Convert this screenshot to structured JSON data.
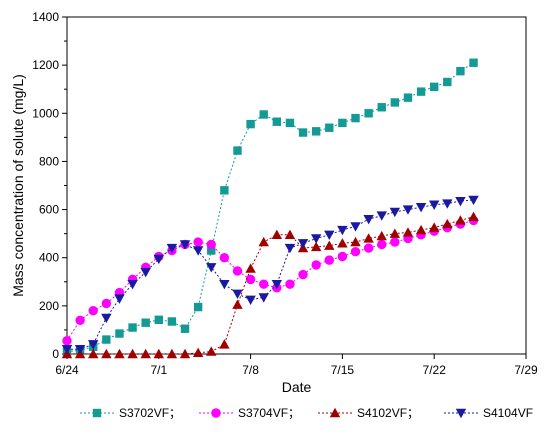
{
  "chart_data": {
    "type": "line",
    "xlabel": "Date",
    "ylabel": "Mass concentration of solute (mg/L)",
    "ylim": [
      0,
      1400
    ],
    "yticks": [
      0,
      200,
      400,
      600,
      800,
      1000,
      1200,
      1400
    ],
    "xlim": [
      "6/24",
      "7/29"
    ],
    "xticks": [
      "6/24",
      "7/1",
      "7/8",
      "7/15",
      "7/22",
      "7/29"
    ],
    "grid": false,
    "legend_position": "bottom",
    "series": [
      {
        "name": "S3702VF",
        "legend_label": "S3702VF；",
        "color": "#139A94",
        "marker": "square",
        "x": [
          "6/24",
          "6/25",
          "6/26",
          "6/27",
          "6/28",
          "6/29",
          "6/30",
          "7/1",
          "7/2",
          "7/3",
          "7/4",
          "7/5",
          "7/6",
          "7/7",
          "7/8",
          "7/9",
          "7/10",
          "7/11",
          "7/12",
          "7/13",
          "7/14",
          "7/15",
          "7/16",
          "7/17",
          "7/18",
          "7/19",
          "7/20",
          "7/21",
          "7/22",
          "7/23",
          "7/24",
          "7/25"
        ],
        "y": [
          10,
          15,
          30,
          60,
          85,
          110,
          130,
          142,
          135,
          105,
          195,
          430,
          680,
          845,
          955,
          995,
          965,
          960,
          920,
          925,
          940,
          960,
          980,
          1000,
          1025,
          1045,
          1065,
          1090,
          1110,
          1130,
          1175,
          1210
        ]
      },
      {
        "name": "S3704VF",
        "legend_label": "S3704VF；",
        "color": "#FF00FF",
        "marker": "circle",
        "x": [
          "6/24",
          "6/25",
          "6/26",
          "6/27",
          "6/28",
          "6/29",
          "6/30",
          "7/1",
          "7/2",
          "7/3",
          "7/4",
          "7/5",
          "7/6",
          "7/7",
          "7/8",
          "7/9",
          "7/10",
          "7/11",
          "7/12",
          "7/13",
          "7/14",
          "7/15",
          "7/16",
          "7/17",
          "7/18",
          "7/19",
          "7/20",
          "7/21",
          "7/22",
          "7/23",
          "7/24",
          "7/25"
        ],
        "y": [
          55,
          140,
          180,
          210,
          255,
          310,
          360,
          405,
          430,
          455,
          465,
          455,
          400,
          345,
          310,
          290,
          275,
          290,
          330,
          370,
          390,
          405,
          425,
          440,
          455,
          465,
          480,
          495,
          510,
          525,
          540,
          555
        ]
      },
      {
        "name": "S4102VF",
        "legend_label": "S4102VF；",
        "color": "#A00000",
        "marker": "triangle-up",
        "x": [
          "6/24",
          "6/25",
          "6/26",
          "6/27",
          "6/28",
          "6/29",
          "6/30",
          "7/1",
          "7/2",
          "7/3",
          "7/4",
          "7/5",
          "7/6",
          "7/7",
          "7/8",
          "7/9",
          "7/10",
          "7/11",
          "7/12",
          "7/13",
          "7/14",
          "7/15",
          "7/16",
          "7/17",
          "7/18",
          "7/19",
          "7/20",
          "7/21",
          "7/22",
          "7/23",
          "7/24",
          "7/25"
        ],
        "y": [
          0,
          0,
          0,
          0,
          0,
          0,
          0,
          0,
          0,
          0,
          5,
          10,
          40,
          205,
          355,
          465,
          495,
          495,
          440,
          445,
          450,
          460,
          465,
          480,
          490,
          500,
          505,
          515,
          525,
          540,
          555,
          570
        ]
      },
      {
        "name": "S4104VF",
        "legend_label": "S4104VF",
        "color": "#1A1AA0",
        "marker": "triangle-down",
        "x": [
          "6/24",
          "6/25",
          "6/26",
          "6/27",
          "6/28",
          "6/29",
          "6/30",
          "7/1",
          "7/2",
          "7/3",
          "7/4",
          "7/5",
          "7/6",
          "7/7",
          "7/8",
          "7/9",
          "7/10",
          "7/11",
          "7/12",
          "7/13",
          "7/14",
          "7/15",
          "7/16",
          "7/17",
          "7/18",
          "7/19",
          "7/20",
          "7/21",
          "7/22",
          "7/23",
          "7/24",
          "7/25"
        ],
        "y": [
          20,
          20,
          40,
          150,
          230,
          290,
          340,
          395,
          440,
          455,
          430,
          360,
          290,
          250,
          225,
          235,
          290,
          440,
          460,
          480,
          495,
          515,
          530,
          560,
          575,
          590,
          600,
          610,
          620,
          625,
          635,
          640
        ]
      }
    ]
  }
}
